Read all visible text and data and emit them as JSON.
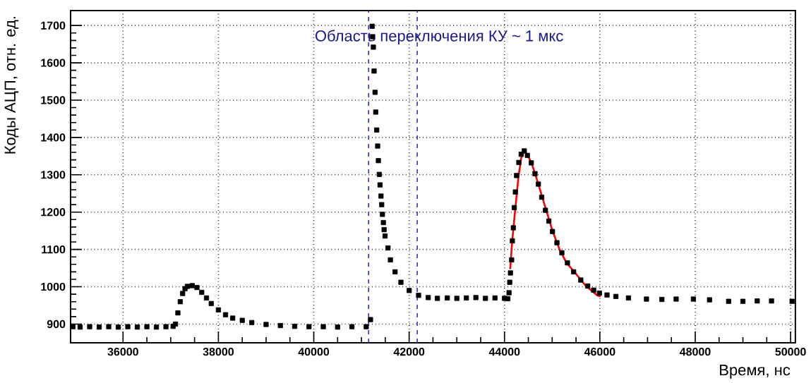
{
  "chart_data": {
    "type": "scatter",
    "xlabel": "Время, нс",
    "ylabel": "Коды АЦП, отн. ед.",
    "annotations": [
      "Область переключения КУ ~ 1 мкс"
    ],
    "xlim": [
      34900,
      50100
    ],
    "ylim": [
      850,
      1740
    ],
    "xticks": [
      36000,
      38000,
      40000,
      42000,
      44000,
      46000,
      48000,
      50000
    ],
    "yticks": [
      900,
      1000,
      1100,
      1200,
      1300,
      1400,
      1500,
      1600,
      1700
    ],
    "grid": true,
    "marker": "square",
    "ref_lines": [
      {
        "axis": "x",
        "value": 41150,
        "color": "#3333cc",
        "line_style": "dashed"
      },
      {
        "axis": "x",
        "value": 42170,
        "color": "#3333cc",
        "line_style": "dashed"
      }
    ],
    "series": [
      {
        "color": "#000000",
        "x": [
          34950,
          35100,
          35300,
          35500,
          35700,
          35900,
          36100,
          36300,
          36500,
          36700,
          36900,
          37050,
          37100,
          37150,
          37200,
          37250,
          37300,
          37350,
          37450,
          37550,
          37650,
          37750,
          37850,
          38000,
          38150,
          38300,
          38500,
          38700,
          39000,
          39300,
          39600,
          39900,
          40200,
          40500,
          40800,
          41100,
          41190,
          41225,
          41235,
          41250,
          41265,
          41285,
          41300,
          41320,
          41340,
          41355,
          41375,
          41390,
          41410,
          41425,
          41440,
          41460,
          41475,
          41495,
          41557,
          41607,
          41705,
          41828,
          42001,
          42198,
          42400,
          42592,
          42800,
          43000,
          43200,
          43400,
          43600,
          43800,
          44000,
          44070,
          44095,
          44110,
          44125,
          44150,
          44165,
          44185,
          44205,
          44228,
          44253,
          44300,
          44350,
          44415,
          44480,
          44562,
          44640,
          44710,
          44780,
          44858,
          44930,
          45006,
          45100,
          45203,
          45320,
          45449,
          45600,
          45745,
          45870,
          45991,
          46150,
          46336,
          46600,
          46977,
          47300,
          47600,
          47962,
          48300,
          48700,
          49000,
          49300,
          49600,
          50031
        ],
        "values": [
          893,
          892,
          893,
          892,
          893,
          892,
          893,
          892,
          893,
          892,
          893,
          894,
          900,
          930,
          960,
          982,
          995,
          1001,
          1003,
          998,
          985,
          970,
          955,
          938,
          925,
          916,
          910,
          904,
          899,
          896,
          894,
          893,
          893,
          892,
          893,
          893,
          912,
          1698,
          1670,
          1642,
          1578,
          1521,
          1468,
          1420,
          1377,
          1338,
          1301,
          1273,
          1243,
          1220,
          1194,
          1172,
          1153,
          1136,
          1104,
          1072,
          1040,
          1012,
          990,
          977,
          971,
          969,
          970,
          969,
          970,
          971,
          969,
          970,
          969,
          968,
          984,
          1012,
          1037,
          1072,
          1123,
          1158,
          1212,
          1254,
          1298,
          1333,
          1355,
          1364,
          1352,
          1332,
          1303,
          1275,
          1240,
          1205,
          1176,
          1148,
          1118,
          1091,
          1064,
          1040,
          1018,
          1002,
          991,
          983,
          978,
          974,
          970,
          967,
          966,
          967,
          967,
          965,
          961,
          961,
          962,
          962,
          961
        ]
      },
      {
        "type": "line",
        "marker": "none",
        "color": "#ff0000",
        "x": [
          44119,
          44160,
          44218,
          44292,
          44350,
          44415,
          44480,
          44562,
          44710,
          44858,
          45006,
          45154,
          45300,
          45496,
          45700,
          45943,
          46016
        ],
        "values": [
          1047,
          1120,
          1199,
          1294,
          1345,
          1364,
          1352,
          1334,
          1275,
          1212,
          1150,
          1100,
          1064,
          1035,
          1003,
          977,
          974
        ]
      }
    ]
  }
}
